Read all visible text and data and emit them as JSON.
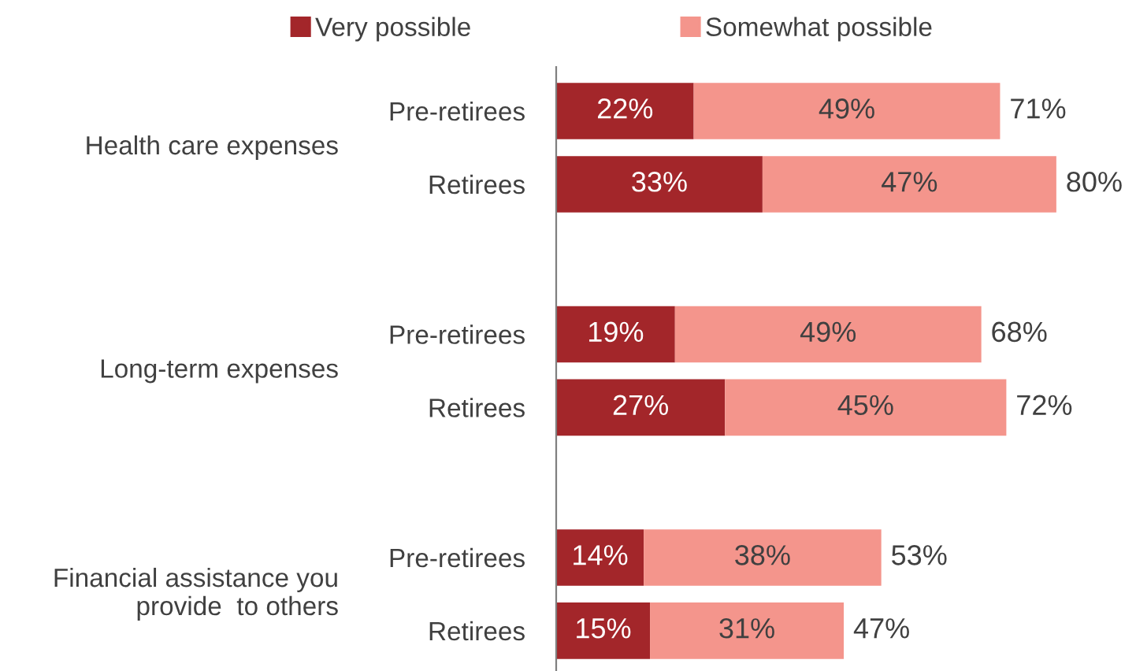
{
  "chart_data": {
    "type": "bar",
    "orientation": "horizontal",
    "stacked": true,
    "categories": [
      "Pre-retirees",
      "Retirees",
      "Pre-retirees",
      "Retirees",
      "Pre-retirees",
      "Retirees"
    ],
    "series": [
      {
        "name": "Very possible",
        "color": "#a3262a",
        "values": [
          22,
          33,
          19,
          27,
          14,
          15
        ],
        "value_labels": [
          "22%",
          "33%",
          "19%",
          "27%",
          "14%",
          "15%"
        ]
      },
      {
        "name": "Somewhat possible",
        "color": "#f4958c",
        "values": [
          49,
          47,
          49,
          45,
          38,
          31
        ],
        "value_labels": [
          "49%",
          "47%",
          "49%",
          "45%",
          "38%",
          "31%"
        ]
      }
    ],
    "totals": [
      "71%",
      "80%",
      "68%",
      "72%",
      "53%",
      "47%"
    ],
    "annotations": [
      "Health care expenses",
      "Long-term expenses",
      "Financial assistance you\nprovide  to others"
    ],
    "legend": "top",
    "grid": false
  }
}
